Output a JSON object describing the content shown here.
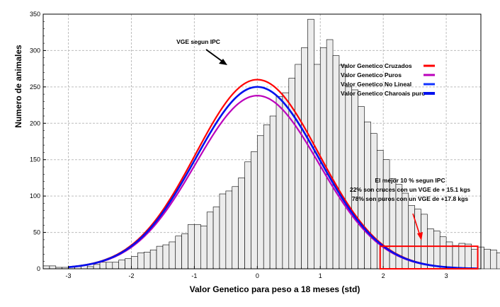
{
  "chart_data": {
    "type": "bar",
    "title": "",
    "xlabel": "Valor Genetico para peso a 18 meses (std)",
    "ylabel": "Numero de animales",
    "xlim": [
      -3.4,
      3.55
    ],
    "ylim": [
      0,
      350
    ],
    "x_ticks": [
      -3,
      -2,
      -1,
      0,
      1,
      2,
      3
    ],
    "y_ticks": [
      0,
      50,
      100,
      150,
      200,
      250,
      300,
      350
    ],
    "grid": true,
    "histogram": {
      "name": "VGE segun IPC",
      "bin_width": 0.1,
      "bin_start": -3.4,
      "values": [
        4,
        4,
        2,
        2,
        3,
        3,
        5,
        3,
        6,
        9,
        9,
        9,
        12,
        14,
        17,
        22,
        23,
        26,
        31,
        33,
        37,
        45,
        48,
        61,
        61,
        59,
        78,
        85,
        103,
        107,
        113,
        125,
        147,
        161,
        183,
        198,
        210,
        237,
        242,
        262,
        281,
        304,
        343,
        281,
        304,
        315,
        293,
        280,
        250,
        246,
        223,
        202,
        186,
        163,
        150,
        124,
        116,
        104,
        87,
        82,
        75,
        55,
        52,
        44,
        37,
        32,
        35,
        34,
        27,
        30,
        27,
        26,
        22,
        24,
        24,
        20,
        17,
        12,
        15,
        12,
        9,
        10,
        7,
        5,
        6,
        4,
        4,
        3,
        3
      ]
    },
    "series": [
      {
        "name": "Valor Genetico Cruzados",
        "type": "normal_curve",
        "mean": 0.0,
        "std": 0.98,
        "peak": 260,
        "color": "#ff0000"
      },
      {
        "name": "Valor Genetico Puros",
        "type": "normal_curve",
        "mean": 0.0,
        "std": 0.98,
        "peak": 238,
        "color": "#bb00bb"
      },
      {
        "name": "Valor Genetico No Lineal",
        "type": "normal_curve",
        "mean": 0.0,
        "std": 0.98,
        "peak": 250,
        "color": "#1133ff"
      },
      {
        "name": "Valor Genetico Charoais puro",
        "type": "normal_curve",
        "mean": 0.0,
        "std": 0.98,
        "peak": 250,
        "color": "#0011ee"
      }
    ],
    "legend": {
      "placement": "top-right",
      "entries": [
        {
          "label": "Valor Genetico Cruzados",
          "color": "#ff0000"
        },
        {
          "label": "Valor Genetico Puros",
          "color": "#bb00bb"
        },
        {
          "label": "Valor Genetico No Lineal",
          "color": "#1133ff"
        },
        {
          "label": "Valor Genetico Charoais puro",
          "color": "#0011ee"
        }
      ]
    },
    "annotations": {
      "histogram_label": "VGE segun IPC",
      "top10": {
        "lines": [
          "El mejor 10 % segun IPC",
          "22% son cruces con un VGE de + 15.1 kgs",
          "78% son puros con un VGE de +17.8 kgs"
        ],
        "region_x": [
          1.95,
          3.5
        ],
        "region_y": [
          0,
          31
        ],
        "color": "#ff0000"
      }
    }
  }
}
